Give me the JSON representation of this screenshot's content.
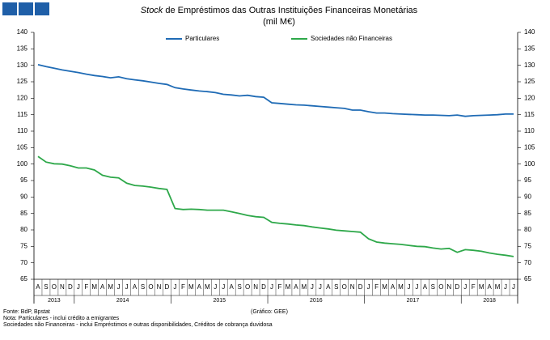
{
  "chart_data": {
    "type": "line",
    "title_emphasis": "Stock",
    "title": "de Empréstimos das Outras Instituições Financeiras Monetárias",
    "subtitle": "(mil M€)",
    "categories": [
      "A",
      "S",
      "O",
      "N",
      "D",
      "J",
      "F",
      "M",
      "A",
      "M",
      "J",
      "J",
      "A",
      "S",
      "O",
      "N",
      "D",
      "J",
      "F",
      "M",
      "A",
      "M",
      "J",
      "J",
      "A",
      "S",
      "O",
      "N",
      "D",
      "J",
      "F",
      "M",
      "A",
      "M",
      "J",
      "J",
      "A",
      "S",
      "O",
      "N",
      "D",
      "J",
      "F",
      "M",
      "A",
      "M",
      "J",
      "J",
      "A",
      "S",
      "O",
      "N",
      "D",
      "J",
      "F",
      "M",
      "A",
      "M",
      "J",
      "J"
    ],
    "years": [
      "2013",
      "2014",
      "2015",
      "2016",
      "2017",
      "2018"
    ],
    "series": [
      {
        "name": "Particulares",
        "color": "#1f6bb5",
        "values": [
          130.2,
          129.6,
          129.1,
          128.6,
          128.2,
          127.8,
          127.3,
          126.9,
          126.6,
          126.2,
          126.5,
          125.9,
          125.6,
          125.3,
          124.9,
          124.5,
          124.2,
          123.2,
          122.8,
          122.5,
          122.2,
          122.0,
          121.7,
          121.2,
          121.0,
          120.7,
          120.9,
          120.5,
          120.3,
          118.6,
          118.4,
          118.2,
          118.0,
          117.9,
          117.7,
          117.5,
          117.3,
          117.1,
          116.9,
          116.4,
          116.4,
          115.9,
          115.5,
          115.5,
          115.3,
          115.2,
          115.1,
          115.0,
          114.9,
          114.9,
          114.8,
          114.7,
          114.9,
          114.5,
          114.7,
          114.8,
          114.9,
          115.0,
          115.2,
          115.2
        ]
      },
      {
        "name": "Sociedades não Financeiras",
        "color": "#2ea84a",
        "values": [
          102.3,
          100.6,
          100.1,
          100.0,
          99.5,
          98.8,
          98.8,
          98.2,
          96.6,
          96.0,
          95.8,
          94.2,
          93.5,
          93.3,
          93.0,
          92.6,
          92.3,
          86.5,
          86.2,
          86.3,
          86.2,
          86.0,
          86.0,
          86.0,
          85.5,
          85.0,
          84.4,
          84.0,
          83.8,
          82.3,
          82.0,
          81.8,
          81.5,
          81.3,
          80.9,
          80.6,
          80.3,
          79.9,
          79.7,
          79.5,
          79.3,
          77.3,
          76.3,
          76.0,
          75.8,
          75.6,
          75.3,
          75.0,
          74.9,
          74.5,
          74.2,
          74.4,
          73.2,
          74.0,
          73.8,
          73.5,
          73.0,
          72.6,
          72.3,
          71.9
        ]
      }
    ],
    "ylim": [
      65,
      140
    ],
    "yticks": [
      65,
      70,
      75,
      80,
      85,
      90,
      95,
      100,
      105,
      110,
      115,
      120,
      125,
      130,
      135,
      140
    ],
    "y2lim": [
      65,
      140
    ],
    "y2ticks": [
      65,
      70,
      75,
      80,
      85,
      90,
      95,
      100,
      105,
      110,
      115,
      120,
      125,
      130,
      135,
      140
    ],
    "grid": false,
    "notes": [
      "Fonte: BdP, Bpstat",
      "Nota: Particulares - inclui crédito a emigrantes",
      "Sociedades não Financeiras - inclui Empréstimos e outras disponibilidades, Créditos de cobrança duvidosa"
    ],
    "credit": "(Gráfico: GEE)"
  }
}
